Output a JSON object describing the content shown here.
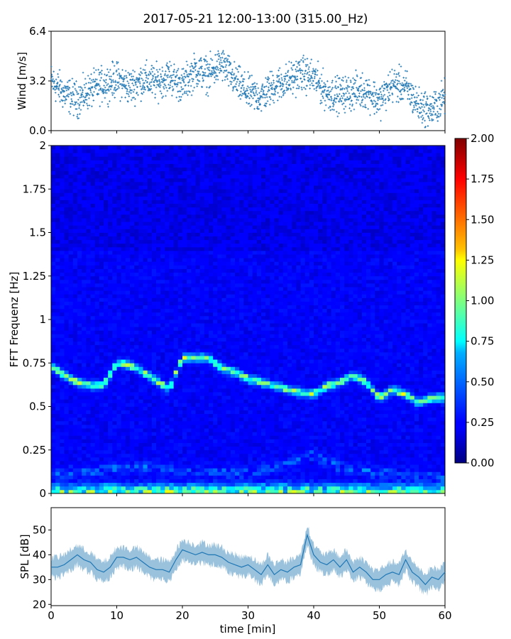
{
  "figure": {
    "title": "2017-05-21 12:00-13:00 (315.00_Hz)"
  },
  "colors": {
    "wind_marker": "#1f77b4",
    "spl_line": "#1f77b4",
    "colormap": "jet"
  },
  "chart_data": [
    {
      "type": "scatter",
      "name": "wind",
      "ylabel": "Wind [m/s]",
      "xlabel": "",
      "xlim": [
        0,
        60
      ],
      "ylim": [
        0,
        6.4
      ],
      "yticks": [
        "0.0",
        "3.2",
        "6.4"
      ],
      "marker": "+",
      "x": [
        0,
        2,
        4,
        6,
        8,
        10,
        12,
        14,
        16,
        18,
        20,
        22,
        24,
        26,
        28,
        30,
        32,
        34,
        36,
        38,
        40,
        42,
        44,
        46,
        48,
        50,
        52,
        54,
        56,
        58,
        60
      ],
      "y": [
        3.2,
        2.4,
        2.0,
        2.6,
        3.0,
        3.3,
        2.8,
        3.3,
        3.1,
        3.5,
        2.9,
        3.9,
        3.6,
        4.3,
        3.2,
        2.4,
        2.2,
        2.9,
        3.2,
        3.7,
        3.4,
        2.4,
        2.3,
        2.5,
        2.6,
        1.9,
        3.0,
        2.8,
        1.6,
        1.3,
        2.2
      ]
    },
    {
      "type": "heatmap",
      "name": "spectrogram",
      "ylabel": "FFT Frequenz [Hz]",
      "xlabel": "",
      "xlim": [
        0,
        60
      ],
      "ylim": [
        0,
        2
      ],
      "yticks": [
        "0",
        "0.25",
        "0.5",
        "0.75",
        "1",
        "1.25",
        "1.5",
        "1.75",
        "2"
      ],
      "colorbar": {
        "min": 0,
        "max": 2,
        "ticks": [
          "0.00",
          "0.25",
          "0.50",
          "0.75",
          "1.00",
          "1.25",
          "1.50",
          "1.75",
          "2.00"
        ]
      },
      "ridge": {
        "x": [
          0,
          2,
          4,
          6,
          8,
          10,
          12,
          14,
          16,
          18,
          20,
          22,
          24,
          26,
          28,
          30,
          32,
          34,
          36,
          38,
          40,
          42,
          44,
          46,
          48,
          50,
          52,
          54,
          56,
          58,
          60
        ],
        "freq": [
          0.73,
          0.68,
          0.64,
          0.62,
          0.62,
          0.75,
          0.74,
          0.7,
          0.65,
          0.6,
          0.78,
          0.78,
          0.78,
          0.72,
          0.7,
          0.66,
          0.64,
          0.62,
          0.6,
          0.58,
          0.57,
          0.62,
          0.64,
          0.68,
          0.64,
          0.55,
          0.6,
          0.57,
          0.52,
          0.55,
          0.55
        ]
      },
      "low_band": {
        "x": [
          0,
          5,
          10,
          15,
          20,
          25,
          30,
          35,
          38,
          40,
          42,
          45,
          50,
          55,
          60
        ],
        "freq": [
          0.12,
          0.12,
          0.15,
          0.15,
          0.13,
          0.12,
          0.12,
          0.16,
          0.2,
          0.22,
          0.18,
          0.14,
          0.12,
          0.1,
          0.1
        ]
      }
    },
    {
      "type": "line",
      "name": "spl",
      "ylabel": "SPL [dB]",
      "xlabel": "time [min]",
      "xlim": [
        0,
        60
      ],
      "ylim": [
        19.5,
        59
      ],
      "xticks": [
        "0",
        "10",
        "20",
        "30",
        "40",
        "50",
        "60"
      ],
      "yticks": [
        "20",
        "30",
        "40",
        "50"
      ],
      "x": [
        0,
        1,
        2,
        3,
        4,
        5,
        6,
        7,
        8,
        9,
        10,
        11,
        12,
        13,
        14,
        15,
        16,
        17,
        18,
        19,
        20,
        21,
        22,
        23,
        24,
        25,
        26,
        27,
        28,
        29,
        30,
        31,
        32,
        33,
        34,
        35,
        36,
        37,
        38,
        39,
        40,
        41,
        42,
        43,
        44,
        45,
        46,
        47,
        48,
        49,
        50,
        51,
        52,
        53,
        54,
        55,
        56,
        57,
        58,
        59,
        60
      ],
      "y": [
        35,
        35,
        36,
        38,
        40,
        38,
        37,
        34,
        33,
        35,
        39,
        39,
        38,
        39,
        37,
        35,
        34,
        34,
        33,
        38,
        42,
        41,
        40,
        41,
        40,
        40,
        39,
        37,
        36,
        35,
        36,
        34,
        32,
        36,
        32,
        34,
        33,
        35,
        36,
        48,
        40,
        37,
        36,
        38,
        35,
        38,
        33,
        35,
        33,
        30,
        30,
        32,
        33,
        32,
        38,
        33,
        31,
        28,
        31,
        30,
        33
      ]
    }
  ]
}
